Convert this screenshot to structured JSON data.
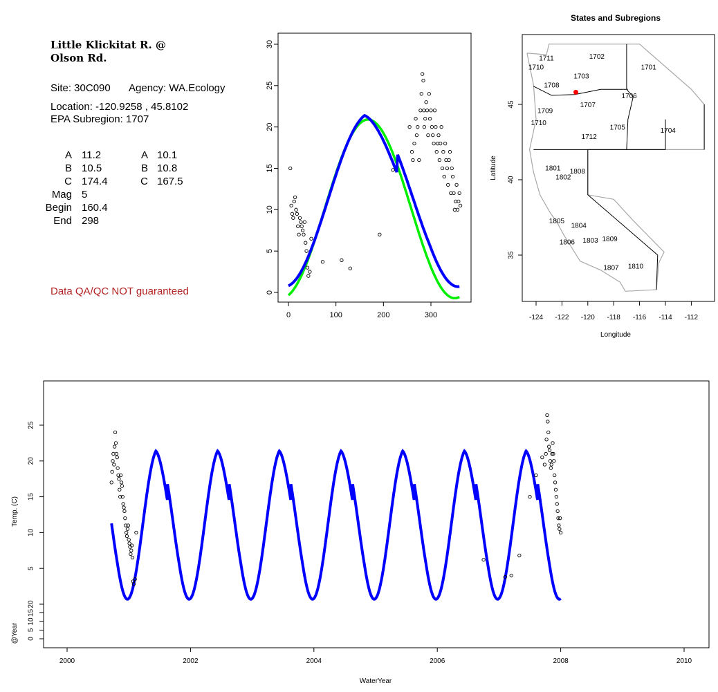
{
  "site_info": {
    "name_line1": "Little Klickitat R. @",
    "name_line2": "Olson Rd.",
    "site": "Site: 30C090",
    "agency": "Agency: WA.Ecology",
    "location": "Location: -120.9258 , 45.8102",
    "subregion": "EPA Subregion: 1707",
    "qa_note": "Data QA/QC NOT guaranteed",
    "qa_color": "#b22222"
  },
  "params": {
    "left": [
      {
        "label": "A",
        "value": "11.2"
      },
      {
        "label": "B",
        "value": "10.5"
      },
      {
        "label": "C",
        "value": "174.4"
      },
      {
        "label": "Mag",
        "value": "5"
      },
      {
        "label": "Begin",
        "value": "160.4"
      },
      {
        "label": "End",
        "value": "298"
      }
    ],
    "right": [
      {
        "label": "A",
        "value": "10.1"
      },
      {
        "label": "B",
        "value": "10.8"
      },
      {
        "label": "C",
        "value": "167.5"
      }
    ]
  },
  "colors": {
    "fit_blue": "#0000ff",
    "fit_green": "#00ee00",
    "site_marker": "#ff0000",
    "points": "#000000"
  },
  "chart_data": [
    {
      "type": "scatter",
      "title": "",
      "xlabel": "",
      "ylabel": "",
      "xlim": [
        0,
        365
      ],
      "ylim": [
        0,
        30
      ],
      "x_ticks": [
        "0",
        "100",
        "200",
        "300"
      ],
      "y_ticks": [
        "0",
        "5",
        "10",
        "15",
        "20",
        "25",
        "30"
      ],
      "series": [
        {
          "kind": "points",
          "x": [
            4,
            6,
            8,
            10,
            12,
            14,
            16,
            18,
            20,
            22,
            24,
            26,
            28,
            30,
            32,
            34,
            36,
            38,
            40,
            42,
            45,
            48,
            72,
            112,
            130,
            192,
            220,
            255,
            260,
            262,
            265,
            268,
            270,
            272,
            275,
            278,
            280,
            282,
            284,
            285,
            286,
            288,
            290,
            292,
            294,
            296,
            298,
            300,
            302,
            304,
            306,
            308,
            310,
            312,
            314,
            316,
            318,
            320,
            322,
            324,
            326,
            328,
            330,
            332,
            334,
            336,
            338,
            340,
            342,
            344,
            346,
            348,
            350,
            352,
            354,
            356,
            358,
            360,
            362
          ],
          "y": [
            15,
            10.5,
            9.5,
            9,
            11,
            11.5,
            10,
            9.5,
            8,
            7,
            9,
            8.5,
            8,
            7.5,
            7,
            8.5,
            6,
            5,
            3,
            2,
            2.5,
            6.5,
            3.7,
            3.9,
            2.9,
            7,
            14.8,
            20,
            17,
            16,
            18,
            21,
            19,
            20,
            16,
            22,
            24,
            26.4,
            25.6,
            22,
            20,
            21,
            23,
            22,
            19,
            24,
            21,
            22,
            20,
            19,
            18,
            22,
            20,
            17,
            18,
            19,
            16,
            18,
            20,
            15,
            17,
            14,
            18,
            16,
            15,
            13,
            16,
            17,
            12,
            15,
            14,
            12,
            10,
            11,
            13,
            10,
            11,
            12,
            10.5
          ]
        }
      ]
    },
    {
      "type": "map",
      "title": "States and Subregions",
      "xlabel": "Longitude",
      "ylabel": "Latitude",
      "xlim": [
        -125,
        -111
      ],
      "ylim": [
        32.5,
        49.5
      ],
      "x_ticks": [
        "-124",
        "-122",
        "-120",
        "-118",
        "-116",
        "-114",
        "-112"
      ],
      "y_ticks": [
        "35",
        "40",
        "45"
      ],
      "regions": [
        {
          "label": "1711",
          "lon": -123.2,
          "lat": 48.1
        },
        {
          "label": "1702",
          "lon": -119.3,
          "lat": 48.2
        },
        {
          "label": "1710",
          "lon": -124.0,
          "lat": 47.5
        },
        {
          "label": "1701",
          "lon": -115.3,
          "lat": 47.5
        },
        {
          "label": "1703",
          "lon": -120.5,
          "lat": 46.9
        },
        {
          "label": "1708",
          "lon": -122.8,
          "lat": 46.3
        },
        {
          "label": "1706",
          "lon": -116.8,
          "lat": 45.6
        },
        {
          "label": "1707",
          "lon": -120.0,
          "lat": 45.0
        },
        {
          "label": "1709",
          "lon": -123.3,
          "lat": 44.6
        },
        {
          "label": "1710",
          "lon": -123.8,
          "lat": 43.8
        },
        {
          "label": "1705",
          "lon": -117.7,
          "lat": 43.5
        },
        {
          "label": "1704",
          "lon": -113.8,
          "lat": 43.3
        },
        {
          "label": "1712",
          "lon": -119.9,
          "lat": 42.9
        },
        {
          "label": "1801",
          "lon": -122.7,
          "lat": 40.8
        },
        {
          "label": "1808",
          "lon": -120.8,
          "lat": 40.6
        },
        {
          "label": "1802",
          "lon": -121.9,
          "lat": 40.2
        },
        {
          "label": "1805",
          "lon": -122.4,
          "lat": 37.3
        },
        {
          "label": "1804",
          "lon": -120.7,
          "lat": 37.0
        },
        {
          "label": "1806",
          "lon": -121.6,
          "lat": 35.9
        },
        {
          "label": "1803",
          "lon": -119.8,
          "lat": 36.0
        },
        {
          "label": "1809",
          "lon": -118.3,
          "lat": 36.1
        },
        {
          "label": "1807",
          "lon": -118.2,
          "lat": 34.2
        },
        {
          "label": "1810",
          "lon": -116.3,
          "lat": 34.3
        }
      ],
      "site": {
        "lon": -120.9258,
        "lat": 45.8102
      }
    },
    {
      "type": "line",
      "title": "",
      "xlabel": "WaterYear",
      "ylabel": "Temp. (C)",
      "ylabel2": "@Year",
      "xlim": [
        1999.6,
        2010.4
      ],
      "ylim": [
        0,
        30
      ],
      "x_ticks": [
        "2000",
        "2002",
        "2004",
        "2006",
        "2008",
        "2010"
      ],
      "y_ticks": [
        "5",
        "10",
        "15",
        "20",
        "25"
      ],
      "y2_ticks": [
        "0",
        "5",
        "10",
        "15",
        "20"
      ],
      "fit_range": [
        2000.72,
        2008.0
      ],
      "series": [
        {
          "kind": "points",
          "x": [
            2000.72,
            2000.73,
            2000.74,
            2000.75,
            2000.76,
            2000.77,
            2000.78,
            2000.79,
            2000.8,
            2000.81,
            2000.82,
            2000.83,
            2000.84,
            2000.85,
            2000.86,
            2000.87,
            2000.88,
            2000.89,
            2000.9,
            2000.91,
            2000.92,
            2000.93,
            2000.94,
            2000.95,
            2000.96,
            2000.97,
            2000.98,
            2000.99,
            2001.0,
            2001.01,
            2001.02,
            2001.03,
            2001.04,
            2001.05,
            2001.06,
            2001.07,
            2001.08,
            2001.1,
            2001.12,
            2006.75,
            2007.1,
            2007.2,
            2007.33,
            2007.5,
            2007.6,
            2007.7,
            2007.74,
            2007.76,
            2007.77,
            2007.78,
            2007.79,
            2007.8,
            2007.81,
            2007.82,
            2007.83,
            2007.84,
            2007.85,
            2007.86,
            2007.87,
            2007.88,
            2007.89,
            2007.9,
            2007.91,
            2007.92,
            2007.93,
            2007.94,
            2007.95,
            2007.96,
            2007.97,
            2007.98,
            2007.99,
            2008.0
          ],
          "y": [
            17,
            18.5,
            20,
            21,
            19.5,
            22,
            24,
            22.5,
            21,
            20.5,
            19,
            18,
            17.5,
            16,
            15,
            18,
            17,
            16.5,
            15,
            14,
            13.5,
            13,
            12,
            11,
            10,
            9.5,
            10.5,
            11,
            9,
            8.5,
            8,
            7,
            7.5,
            8.2,
            6.5,
            3.2,
            2.8,
            3.5,
            10,
            6.2,
            3.8,
            4.0,
            6.8,
            15,
            18,
            20.5,
            19.5,
            21,
            23,
            26.4,
            25.5,
            24,
            22,
            21.5,
            20,
            19,
            19.5,
            21,
            22.5,
            21,
            20,
            18,
            17,
            16,
            15,
            14,
            13,
            12,
            11,
            10.5,
            12,
            10
          ]
        }
      ]
    }
  ]
}
